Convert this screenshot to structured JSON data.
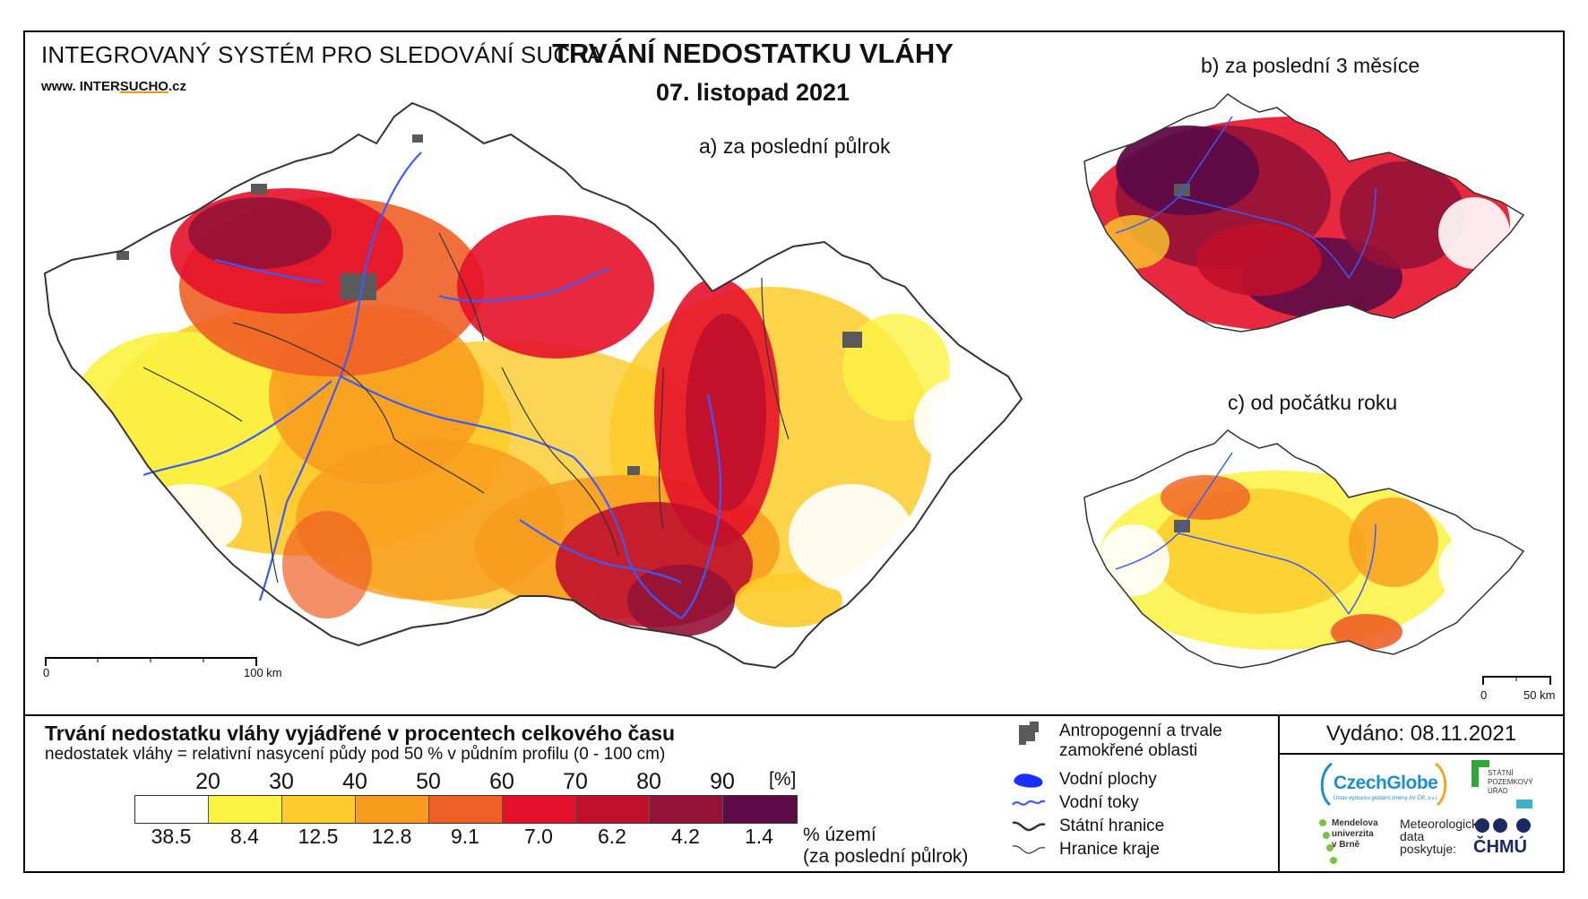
{
  "header": {
    "system_name": "INTEGROVANÝ SYSTÉM PRO SLEDOVÁNÍ SUCHA",
    "web_prefix": "www. INTER",
    "web_mid": "SUCHO",
    "web_suffix": ".cz",
    "title": "TRVÁNÍ NEDOSTATKU VLÁHY",
    "date": "07. listopad 2021"
  },
  "panels": {
    "a_label": "a) za poslední půlrok",
    "b_label": "b) za poslední 3 měsíce",
    "c_label": "c) od počátku roku"
  },
  "scale_a": {
    "start": "0",
    "end": "100 km"
  },
  "scale_c": {
    "start": "0",
    "end": "50 km"
  },
  "legend": {
    "title": "Trvání nedostatku vláhy vyjádřené v procentech celkového času",
    "subtitle": "nedostatek vláhy = relativní nasycení půdy pod 50 % v půdním profilu (0 - 100 cm)",
    "unit": "[%]",
    "thresholds": [
      "20",
      "30",
      "40",
      "50",
      "60",
      "70",
      "80",
      "90"
    ],
    "classes": [
      {
        "color": "#ffffff",
        "area_pct": "38.5"
      },
      {
        "color": "#fbf241",
        "area_pct": "8.4"
      },
      {
        "color": "#fdcb2a",
        "area_pct": "12.5"
      },
      {
        "color": "#f89b1e",
        "area_pct": "12.8"
      },
      {
        "color": "#ef5f25",
        "area_pct": "9.1"
      },
      {
        "color": "#e5112a",
        "area_pct": "7.0"
      },
      {
        "color": "#c0102b",
        "area_pct": "6.2"
      },
      {
        "color": "#931236",
        "area_pct": "4.2"
      },
      {
        "color": "#5e0b47",
        "area_pct": "1.4"
      }
    ],
    "area_label_1": "% území",
    "area_label_2": "(za poslední půlrok)"
  },
  "symbols": [
    {
      "icon": "urban-area-icon",
      "label_1": "Antropogenní a trvale",
      "label_2": "zamokřené oblasti"
    },
    {
      "icon": "water-body-icon",
      "label_1": "Vodní plochy"
    },
    {
      "icon": "river-icon",
      "label_1": "Vodní toky"
    },
    {
      "icon": "state-border-icon",
      "label_1": "Státní hranice"
    },
    {
      "icon": "region-border-icon",
      "label_1": "Hranice kraje"
    }
  ],
  "issued": "Vydáno: 08.11.2021",
  "logos": {
    "czechglobe": "CzechGlobe",
    "czechglobe_sub": "Ústav výzkumu globální změny AV ČR, v.v.i.",
    "spu_1": "STÁTNÍ",
    "spu_2": "POZEMKOVÝ",
    "spu_3": "ÚŘAD",
    "mendel_1": "Mendelova",
    "mendel_2": "univerzita",
    "mendel_3": "v Brně",
    "met_1": "Meteorologická",
    "met_2": "data",
    "met_3": "poskytuje:",
    "chmu": "ČHMÚ"
  },
  "colors": {
    "river": "#3a5bff",
    "urban": "#5a5a5a",
    "border": "#333333"
  }
}
